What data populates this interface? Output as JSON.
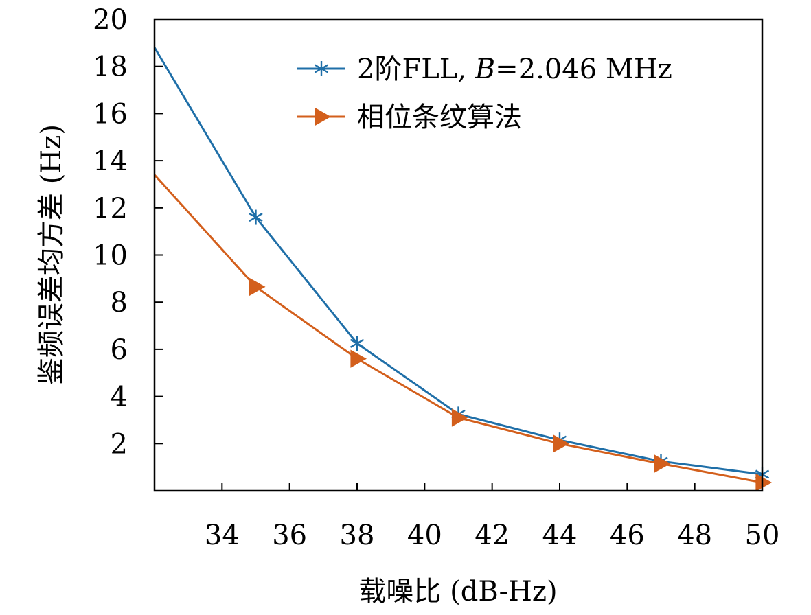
{
  "chart_data": {
    "type": "line",
    "xlabel": "载噪比 (dB-Hz)",
    "ylabel": "鉴频误差均方差 (Hz)",
    "xlim": [
      32,
      50
    ],
    "ylim": [
      0,
      20
    ],
    "xticks": [
      "34",
      "36",
      "38",
      "40",
      "42",
      "44",
      "46",
      "48",
      "50"
    ],
    "yticks": [
      "2",
      "4",
      "6",
      "8",
      "10",
      "12",
      "14",
      "16",
      "18",
      "20"
    ],
    "grid": false,
    "legend_position": "top-right",
    "series": [
      {
        "name": "2阶FLL, B=2.046 MHz",
        "name_parts": [
          "2阶FLL, ",
          "B",
          "=2.046 MHz"
        ],
        "color": "#1f6fa8",
        "marker": "asterisk",
        "x": [
          32,
          35,
          38,
          41,
          44,
          47,
          50
        ],
        "y": [
          18.8,
          11.6,
          6.25,
          3.25,
          2.15,
          1.25,
          0.7
        ]
      },
      {
        "name": "相位条纹算法",
        "color": "#d35f1c",
        "marker": "triangle-right",
        "x": [
          32,
          35,
          38,
          41,
          44,
          47,
          50
        ],
        "y": [
          13.4,
          8.65,
          5.6,
          3.1,
          2.0,
          1.15,
          0.35
        ]
      }
    ]
  }
}
